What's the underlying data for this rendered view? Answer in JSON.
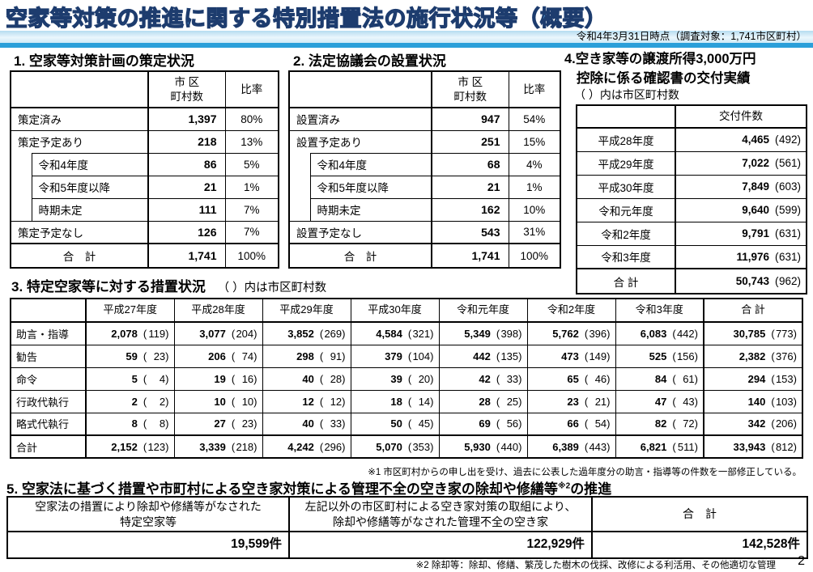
{
  "page": {
    "title": "空家等対策の推進に関する特別措置法の施行状況等（概要）",
    "subtitle": "令和4年3月31日時点（調査対象：1,741市区町村）",
    "page_number": "2",
    "title_color": "#4f9ad3",
    "title_outline_color": "#1d3c6e",
    "accent_bar_color": "#2b9fd9",
    "band_gradient": [
      "#b5dcf0",
      "#eaf6fc",
      "#cfe9f6"
    ]
  },
  "section1": {
    "heading": "1. 空家等対策計画の策定状況",
    "count_header_lines": [
      "市 区",
      "町村数"
    ],
    "ratio_header": "比率",
    "rows": [
      {
        "label": "策定済み",
        "count": "1,397",
        "ratio": "80%",
        "indent": false,
        "group": false
      },
      {
        "label": "策定予定あり",
        "count": "218",
        "ratio": "13%",
        "indent": false,
        "group": true
      },
      {
        "label": "令和4年度",
        "count": "86",
        "ratio": "5%",
        "indent": true,
        "group": false
      },
      {
        "label": "令和5年度以降",
        "count": "21",
        "ratio": "1%",
        "indent": true,
        "group": false
      },
      {
        "label": "時期未定",
        "count": "111",
        "ratio": "7%",
        "indent": true,
        "group": false
      },
      {
        "label": "策定予定なし",
        "count": "126",
        "ratio": "7%",
        "indent": false,
        "group": false
      }
    ],
    "total": {
      "label": "合　計",
      "count": "1,741",
      "ratio": "100%"
    }
  },
  "section2": {
    "heading": "2. 法定協議会の設置状況",
    "count_header_lines": [
      "市 区",
      "町村数"
    ],
    "ratio_header": "比率",
    "rows": [
      {
        "label": "設置済み",
        "count": "947",
        "ratio": "54%",
        "indent": false,
        "group": false
      },
      {
        "label": "設置予定あり",
        "count": "251",
        "ratio": "15%",
        "indent": false,
        "group": true
      },
      {
        "label": "令和4年度",
        "count": "68",
        "ratio": "4%",
        "indent": true,
        "group": false
      },
      {
        "label": "令和5年度以降",
        "count": "21",
        "ratio": "1%",
        "indent": true,
        "group": false
      },
      {
        "label": "時期未定",
        "count": "162",
        "ratio": "10%",
        "indent": true,
        "group": false
      },
      {
        "label": "設置予定なし",
        "count": "543",
        "ratio": "31%",
        "indent": false,
        "group": false
      }
    ],
    "total": {
      "label": "合　計",
      "count": "1,741",
      "ratio": "100%"
    }
  },
  "section4": {
    "heading_line1": "4.空き家等の譲渡所得3,000万円",
    "heading_line2": "控除に係る確認書の交付実績",
    "heading_note": "（ ）内は市区町村数",
    "col_header": "交付件数",
    "rows": [
      {
        "label": "平成28年度",
        "value": "4,465",
        "paren": "492"
      },
      {
        "label": "平成29年度",
        "value": "7,022",
        "paren": "561"
      },
      {
        "label": "平成30年度",
        "value": "7,849",
        "paren": "603"
      },
      {
        "label": "令和元年度",
        "value": "9,640",
        "paren": "599"
      },
      {
        "label": "令和2年度",
        "value": "9,791",
        "paren": "631"
      },
      {
        "label": "令和3年度",
        "value": "11,976",
        "paren": "631"
      }
    ],
    "total": {
      "label": "合 計",
      "value": "50,743",
      "paren": "962"
    }
  },
  "section3": {
    "heading": "3. 特定空家等に対する措置状況",
    "heading_note": "（ ）内は市区町村数",
    "col_headers": [
      "平成27年度",
      "平成28年度",
      "平成29年度",
      "平成30年度",
      "令和元年度",
      "令和2年度",
      "令和3年度",
      "合 計"
    ],
    "rows": [
      {
        "label": "助言・指導",
        "cells": [
          [
            "2,078",
            "119"
          ],
          [
            "3,077",
            "204"
          ],
          [
            "3,852",
            "269"
          ],
          [
            "4,584",
            "321"
          ],
          [
            "5,349",
            "398"
          ],
          [
            "5,762",
            "396"
          ],
          [
            "6,083",
            "442"
          ],
          [
            "30,785",
            "773"
          ]
        ],
        "total_row": false
      },
      {
        "label": "勧告",
        "cells": [
          [
            "59",
            "23"
          ],
          [
            "206",
            "74"
          ],
          [
            "298",
            "91"
          ],
          [
            "379",
            "104"
          ],
          [
            "442",
            "135"
          ],
          [
            "473",
            "149"
          ],
          [
            "525",
            "156"
          ],
          [
            "2,382",
            "376"
          ]
        ],
        "total_row": false
      },
      {
        "label": "命令",
        "cells": [
          [
            "5",
            "4"
          ],
          [
            "19",
            "16"
          ],
          [
            "40",
            "28"
          ],
          [
            "39",
            "20"
          ],
          [
            "42",
            "33"
          ],
          [
            "65",
            "46"
          ],
          [
            "84",
            "61"
          ],
          [
            "294",
            "153"
          ]
        ],
        "total_row": false
      },
      {
        "label": "行政代執行",
        "cells": [
          [
            "2",
            "2"
          ],
          [
            "10",
            "10"
          ],
          [
            "12",
            "12"
          ],
          [
            "18",
            "14"
          ],
          [
            "28",
            "25"
          ],
          [
            "23",
            "21"
          ],
          [
            "47",
            "43"
          ],
          [
            "140",
            "103"
          ]
        ],
        "total_row": false
      },
      {
        "label": "略式代執行",
        "cells": [
          [
            "8",
            "8"
          ],
          [
            "27",
            "23"
          ],
          [
            "40",
            "33"
          ],
          [
            "50",
            "45"
          ],
          [
            "69",
            "56"
          ],
          [
            "66",
            "54"
          ],
          [
            "82",
            "72"
          ],
          [
            "342",
            "206"
          ]
        ],
        "total_row": false
      },
      {
        "label": "合計",
        "cells": [
          [
            "2,152",
            "123"
          ],
          [
            "3,339",
            "218"
          ],
          [
            "4,242",
            "296"
          ],
          [
            "5,070",
            "353"
          ],
          [
            "5,930",
            "440"
          ],
          [
            "6,389",
            "443"
          ],
          [
            "6,821",
            "511"
          ],
          [
            "33,943",
            "812"
          ]
        ],
        "total_row": true
      }
    ],
    "footnote": "※1 市区町村からの申し出を受け、過去に公表した過年度分の助言・指導等の件数を一部修正している。"
  },
  "section5": {
    "heading_pre": "5. 空家法に基づく措置や市町村による空き家対策による管理不全の空き家の除却や修繕等",
    "heading_sup": "※2",
    "heading_post": "の推進",
    "col_headers": [
      [
        "空家法の措置により除却や修繕等がなされた",
        "特定空家等"
      ],
      [
        "左記以外の市区町村による空き家対策の取組により、",
        "除却や修繕等がなされた管理不全の空き家"
      ],
      [
        "合　計"
      ]
    ],
    "values": [
      "19,599件",
      "122,929件",
      "142,528件"
    ],
    "footnote": "※2 除却等：除却、修繕、繁茂した樹木の伐採、改修による利活用、その他適切な管理"
  }
}
